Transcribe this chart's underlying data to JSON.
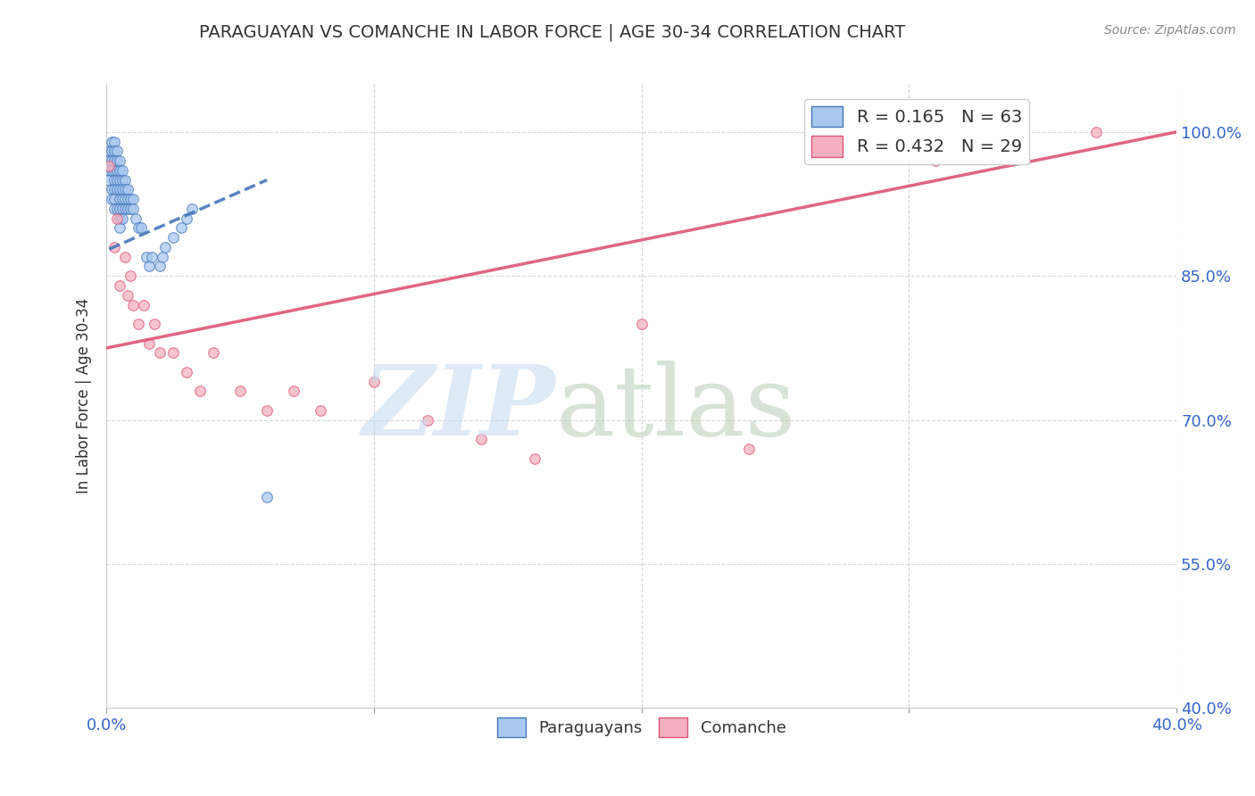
{
  "title": "PARAGUAYAN VS COMANCHE IN LABOR FORCE | AGE 30-34 CORRELATION CHART",
  "source": "Source: ZipAtlas.com",
  "ylabel": "In Labor Force | Age 30-34",
  "xlim": [
    0.0,
    0.4
  ],
  "ylim": [
    0.4,
    1.05
  ],
  "xticks": [
    0.0,
    0.1,
    0.2,
    0.3,
    0.4
  ],
  "xticklabels": [
    "0.0%",
    "",
    "",
    "",
    "40.0%"
  ],
  "yticks": [
    0.4,
    0.55,
    0.7,
    0.85,
    1.0
  ],
  "yticklabels": [
    "40.0%",
    "55.0%",
    "70.0%",
    "85.0%",
    "100.0%"
  ],
  "r1": 0.165,
  "n1": 63,
  "r2": 0.432,
  "n2": 29,
  "legend_label1": "Paraguayans",
  "legend_label2": "Comanche",
  "color1": "#A8C8F0",
  "color2": "#F4B0C0",
  "trendline1_color": "#4477BB",
  "trendline2_color": "#DD5577",
  "paraguayan_x": [
    0.001,
    0.001,
    0.001,
    0.001,
    0.002,
    0.002,
    0.002,
    0.002,
    0.002,
    0.002,
    0.003,
    0.003,
    0.003,
    0.003,
    0.003,
    0.003,
    0.003,
    0.003,
    0.004,
    0.004,
    0.004,
    0.004,
    0.004,
    0.004,
    0.005,
    0.005,
    0.005,
    0.005,
    0.005,
    0.005,
    0.005,
    0.005,
    0.006,
    0.006,
    0.006,
    0.006,
    0.006,
    0.006,
    0.007,
    0.007,
    0.007,
    0.007,
    0.008,
    0.008,
    0.008,
    0.009,
    0.009,
    0.01,
    0.01,
    0.011,
    0.012,
    0.013,
    0.015,
    0.016,
    0.017,
    0.02,
    0.021,
    0.022,
    0.025,
    0.028,
    0.03,
    0.032,
    0.06
  ],
  "paraguayan_y": [
    0.98,
    0.97,
    0.96,
    0.95,
    0.99,
    0.98,
    0.97,
    0.96,
    0.94,
    0.93,
    0.99,
    0.98,
    0.97,
    0.96,
    0.95,
    0.94,
    0.93,
    0.92,
    0.98,
    0.97,
    0.96,
    0.95,
    0.94,
    0.92,
    0.97,
    0.96,
    0.95,
    0.94,
    0.93,
    0.92,
    0.91,
    0.9,
    0.96,
    0.95,
    0.94,
    0.93,
    0.92,
    0.91,
    0.95,
    0.94,
    0.93,
    0.92,
    0.94,
    0.93,
    0.92,
    0.93,
    0.92,
    0.93,
    0.92,
    0.91,
    0.9,
    0.9,
    0.87,
    0.86,
    0.87,
    0.86,
    0.87,
    0.88,
    0.89,
    0.9,
    0.91,
    0.92,
    0.62
  ],
  "comanche_x": [
    0.001,
    0.003,
    0.004,
    0.005,
    0.007,
    0.008,
    0.009,
    0.01,
    0.012,
    0.014,
    0.016,
    0.018,
    0.02,
    0.025,
    0.03,
    0.035,
    0.04,
    0.05,
    0.06,
    0.07,
    0.08,
    0.1,
    0.12,
    0.14,
    0.16,
    0.2,
    0.24,
    0.31,
    0.37
  ],
  "comanche_y": [
    0.965,
    0.88,
    0.91,
    0.84,
    0.87,
    0.83,
    0.85,
    0.82,
    0.8,
    0.82,
    0.78,
    0.8,
    0.77,
    0.77,
    0.75,
    0.73,
    0.77,
    0.73,
    0.71,
    0.73,
    0.71,
    0.74,
    0.7,
    0.68,
    0.66,
    0.8,
    0.67,
    0.97,
    1.0
  ],
  "trendline1_x": [
    0.001,
    0.06
  ],
  "trendline1_y": [
    0.878,
    0.95
  ],
  "trendline2_x": [
    0.0,
    0.4
  ],
  "trendline2_y": [
    0.775,
    1.0
  ]
}
